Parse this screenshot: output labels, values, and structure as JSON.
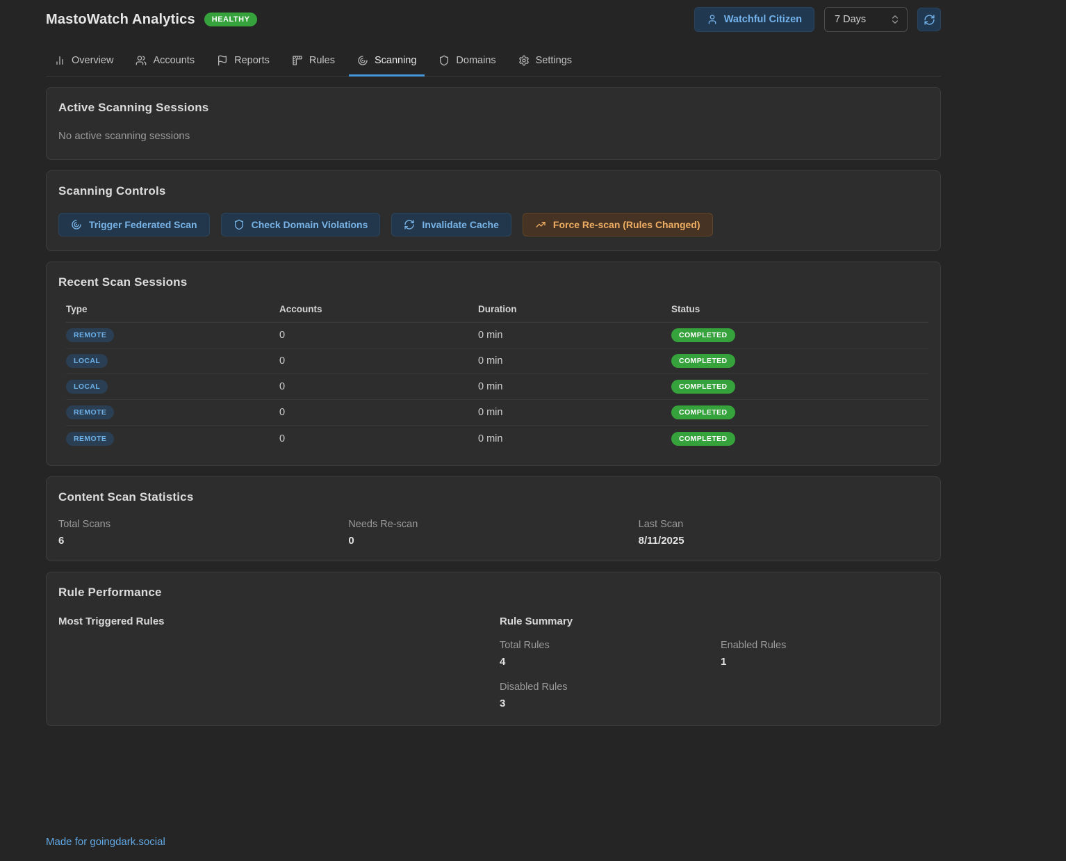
{
  "header": {
    "title": "MastoWatch Analytics",
    "health_badge": "HEALTHY",
    "user_button": "Watchful Citizen",
    "period_selected": "7 Days"
  },
  "nav": {
    "tabs": [
      {
        "label": "Overview",
        "icon": "bar-chart-icon",
        "active": false
      },
      {
        "label": "Accounts",
        "icon": "users-icon",
        "active": false
      },
      {
        "label": "Reports",
        "icon": "flag-icon",
        "active": false
      },
      {
        "label": "Rules",
        "icon": "ruler-icon",
        "active": false
      },
      {
        "label": "Scanning",
        "icon": "radar-icon",
        "active": true
      },
      {
        "label": "Domains",
        "icon": "shield-icon",
        "active": false
      },
      {
        "label": "Settings",
        "icon": "gear-icon",
        "active": false
      }
    ]
  },
  "active_sessions": {
    "title": "Active Scanning Sessions",
    "empty_message": "No active scanning sessions"
  },
  "scanning_controls": {
    "title": "Scanning Controls",
    "buttons": [
      {
        "label": "Trigger Federated Scan",
        "icon": "radar-icon",
        "variant": "blue"
      },
      {
        "label": "Check Domain Violations",
        "icon": "shield-icon",
        "variant": "blue"
      },
      {
        "label": "Invalidate Cache",
        "icon": "refresh-icon",
        "variant": "blue"
      },
      {
        "label": "Force Re-scan (Rules Changed)",
        "icon": "trending-up-icon",
        "variant": "orange"
      }
    ]
  },
  "recent_sessions": {
    "title": "Recent Scan Sessions",
    "columns": [
      "Type",
      "Accounts",
      "Duration",
      "Status"
    ],
    "rows": [
      {
        "type": "REMOTE",
        "accounts": "0",
        "duration": "0 min",
        "status": "COMPLETED"
      },
      {
        "type": "LOCAL",
        "accounts": "0",
        "duration": "0 min",
        "status": "COMPLETED"
      },
      {
        "type": "LOCAL",
        "accounts": "0",
        "duration": "0 min",
        "status": "COMPLETED"
      },
      {
        "type": "REMOTE",
        "accounts": "0",
        "duration": "0 min",
        "status": "COMPLETED"
      },
      {
        "type": "REMOTE",
        "accounts": "0",
        "duration": "0 min",
        "status": "COMPLETED"
      }
    ]
  },
  "content_stats": {
    "title": "Content Scan Statistics",
    "stats": [
      {
        "label": "Total Scans",
        "value": "6"
      },
      {
        "label": "Needs Re-scan",
        "value": "0"
      },
      {
        "label": "Last Scan",
        "value": "8/11/2025"
      }
    ]
  },
  "rule_performance": {
    "title": "Rule Performance",
    "most_triggered_title": "Most Triggered Rules",
    "summary_title": "Rule Summary",
    "stats": [
      {
        "label": "Total Rules",
        "value": "4"
      },
      {
        "label": "Enabled Rules",
        "value": "1"
      },
      {
        "label": "Disabled Rules",
        "value": "3"
      }
    ]
  },
  "footer": {
    "prefix": "Made for ",
    "link": "goingdark.social"
  },
  "colors": {
    "page_bg": "#252526",
    "card_bg": "#2d2d2d",
    "accent_blue": "#74b2ec",
    "tab_underline": "#4596d8",
    "badge_green": "#36a23c",
    "accent_orange": "#efae63",
    "type_badge_blue": "#6cb0e8"
  }
}
